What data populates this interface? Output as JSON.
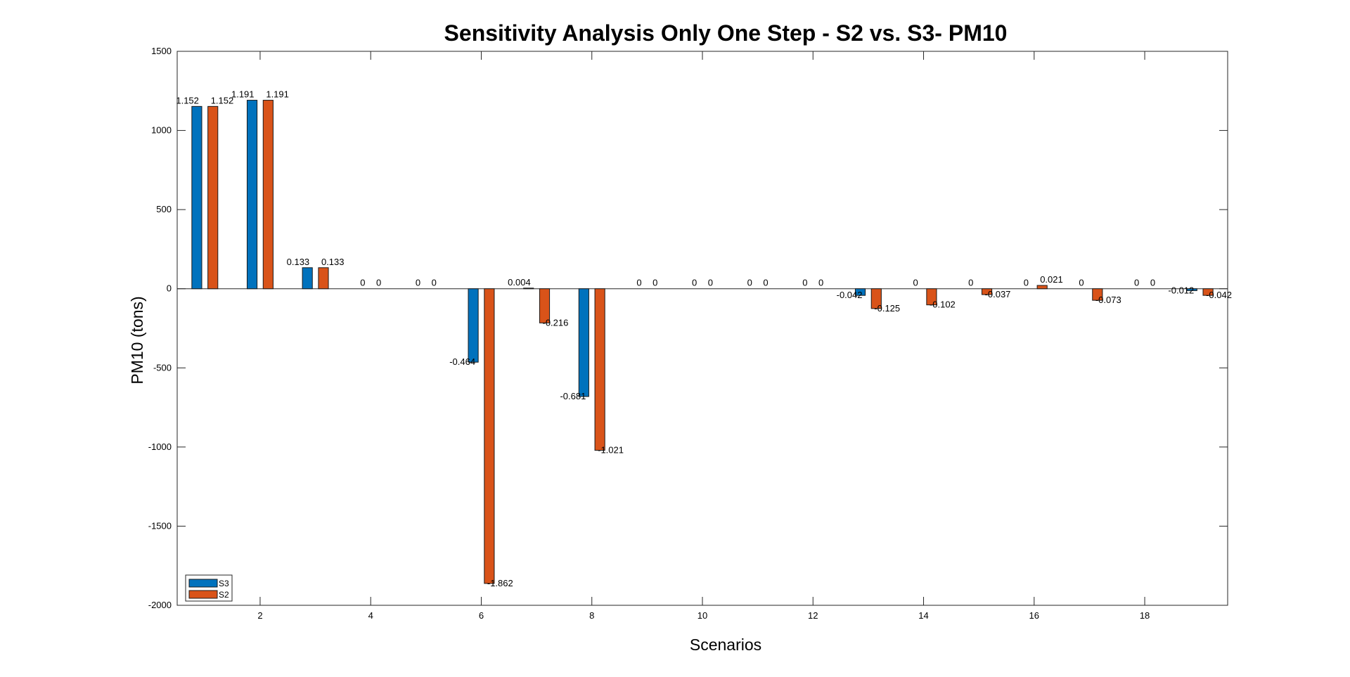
{
  "chart_data": {
    "type": "bar",
    "title": "Sensitivity Analysis Only One Step - S2 vs. S3- PM10",
    "xlabel": "Scenarios",
    "ylabel": "PM10 (tons)",
    "xlim": [
      0.5,
      19.5
    ],
    "ylim": [
      -2000,
      1500
    ],
    "xticks": [
      2,
      4,
      6,
      8,
      10,
      12,
      14,
      16,
      18
    ],
    "yticks": [
      -2000,
      -1500,
      -1000,
      -500,
      0,
      500,
      1000,
      1500
    ],
    "grid": false,
    "legend_position": "bottom-left",
    "categories": [
      1,
      2,
      3,
      4,
      5,
      6,
      7,
      8,
      9,
      10,
      11,
      12,
      13,
      14,
      15,
      16,
      17,
      18,
      19
    ],
    "series": [
      {
        "name": "S3",
        "color": "#0072BD",
        "values": [
          1152,
          1191,
          133,
          0,
          0,
          -464,
          4,
          -681,
          0,
          0,
          0,
          0,
          -42,
          0,
          0,
          0,
          0,
          0,
          -12
        ],
        "labels": [
          "1.152",
          "1.191",
          "0.133",
          "0",
          "0",
          "-0.464",
          "0.004",
          "-0.681",
          "0",
          "0",
          "0",
          "0",
          "-0.042",
          "0",
          "0",
          "0",
          "0",
          "0",
          "-0.012"
        ]
      },
      {
        "name": "S2",
        "color": "#D95319",
        "values": [
          1152,
          1191,
          133,
          0,
          0,
          -1862,
          -216,
          -1021,
          0,
          0,
          0,
          0,
          -125,
          -102,
          -37,
          21,
          -73,
          0,
          -42
        ],
        "labels": [
          "1.152",
          "1.191",
          "0.133",
          "0",
          "0",
          "-1.862",
          "-0.216",
          "-1.021",
          "0",
          "0",
          "0",
          "0",
          "-0.125",
          "-0.102",
          "-0.037",
          "0.021",
          "-0.073",
          "0",
          "-0.042"
        ]
      }
    ]
  }
}
